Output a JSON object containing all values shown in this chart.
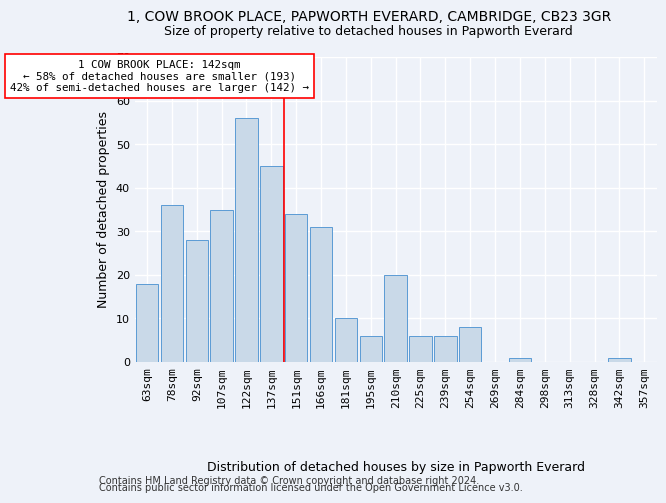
{
  "title": "1, COW BROOK PLACE, PAPWORTH EVERARD, CAMBRIDGE, CB23 3GR",
  "subtitle": "Size of property relative to detached houses in Papworth Everard",
  "xlabel": "Distribution of detached houses by size in Papworth Everard",
  "ylabel": "Number of detached properties",
  "categories": [
    "63sqm",
    "78sqm",
    "92sqm",
    "107sqm",
    "122sqm",
    "137sqm",
    "151sqm",
    "166sqm",
    "181sqm",
    "195sqm",
    "210sqm",
    "225sqm",
    "239sqm",
    "254sqm",
    "269sqm",
    "284sqm",
    "298sqm",
    "313sqm",
    "328sqm",
    "342sqm",
    "357sqm"
  ],
  "values": [
    18,
    36,
    28,
    35,
    56,
    45,
    34,
    31,
    10,
    6,
    20,
    6,
    6,
    8,
    0,
    1,
    0,
    0,
    0,
    1,
    0
  ],
  "bar_color": "#c9d9e8",
  "bar_edge_color": "#5b9bd5",
  "ref_line_label": "1 COW BROOK PLACE: 142sqm",
  "annotation_line1": "← 58% of detached houses are smaller (193)",
  "annotation_line2": "42% of semi-detached houses are larger (142) →",
  "ylim": [
    0,
    70
  ],
  "yticks": [
    0,
    10,
    20,
    30,
    40,
    50,
    60,
    70
  ],
  "footer1": "Contains HM Land Registry data © Crown copyright and database right 2024.",
  "footer2": "Contains public sector information licensed under the Open Government Licence v3.0.",
  "background_color": "#eef2f9",
  "grid_color": "#ffffff",
  "title_fontsize": 10,
  "subtitle_fontsize": 9,
  "axis_label_fontsize": 9,
  "tick_fontsize": 8,
  "footer_fontsize": 7
}
